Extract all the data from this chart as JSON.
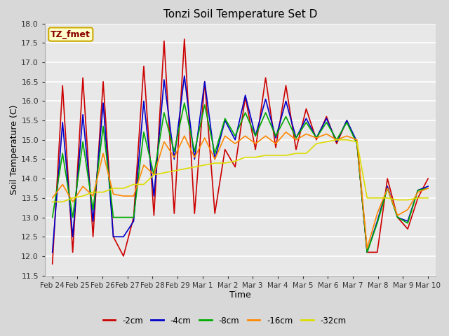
{
  "title": "Tonzi Soil Temperature Set D",
  "xlabel": "Time",
  "ylabel": "Soil Temperature (C)",
  "ylim": [
    11.5,
    18.0
  ],
  "yticks": [
    11.5,
    12.0,
    12.5,
    13.0,
    13.5,
    14.0,
    14.5,
    15.0,
    15.5,
    16.0,
    16.5,
    17.0,
    17.5,
    18.0
  ],
  "legend_label": "TZ_fmet",
  "series_labels": [
    "-2cm",
    "-4cm",
    "-8cm",
    "-16cm",
    "-32cm"
  ],
  "series_colors": [
    "#cc0000",
    "#0000cc",
    "#00aa00",
    "#ff8800",
    "#dddd00"
  ],
  "bg_color": "#d8d8d8",
  "plot_bg_color": "#e8e8e8",
  "x_tick_labels": [
    "Feb 24",
    "Feb 25",
    "Feb 26",
    "Feb 27",
    "Feb 28",
    "Feb 29",
    "Mar 1",
    "Mar 2",
    "Mar 3",
    "Mar 4",
    "Mar 5",
    "Mar 6",
    "Mar 7",
    "Mar 8",
    "Mar 9",
    "Mar 10"
  ],
  "series_2cm": [
    11.8,
    16.4,
    12.1,
    16.6,
    12.5,
    16.5,
    12.5,
    12.0,
    13.0,
    16.9,
    13.05,
    17.55,
    13.1,
    17.6,
    13.1,
    16.5,
    13.1,
    14.75,
    14.3,
    16.1,
    14.75,
    16.6,
    14.8,
    16.4,
    14.75,
    15.8,
    15.0,
    15.6,
    14.9,
    15.5,
    14.9,
    12.1,
    12.1,
    14.0,
    13.0,
    12.7,
    13.5,
    14.0
  ],
  "series_4cm": [
    12.1,
    15.45,
    12.5,
    15.65,
    12.9,
    15.95,
    12.5,
    12.5,
    12.9,
    16.0,
    13.55,
    16.55,
    14.5,
    16.65,
    14.5,
    16.5,
    14.5,
    15.5,
    15.0,
    16.15,
    15.1,
    16.05,
    15.05,
    16.0,
    15.05,
    15.55,
    15.05,
    15.55,
    14.95,
    15.5,
    14.95,
    12.1,
    12.9,
    13.8,
    13.0,
    12.9,
    13.7,
    13.8
  ],
  "series_8cm": [
    13.0,
    14.65,
    13.0,
    14.95,
    13.2,
    15.35,
    13.0,
    13.0,
    13.0,
    15.2,
    14.1,
    15.7,
    14.7,
    15.95,
    14.7,
    15.9,
    14.65,
    15.55,
    15.1,
    15.7,
    15.1,
    15.7,
    15.1,
    15.6,
    15.05,
    15.45,
    15.05,
    15.45,
    15.0,
    15.45,
    14.9,
    12.1,
    12.85,
    13.75,
    13.0,
    12.85,
    13.7,
    13.75
  ],
  "series_16cm": [
    13.5,
    13.85,
    13.4,
    13.8,
    13.55,
    14.65,
    13.6,
    13.55,
    13.55,
    14.35,
    14.1,
    14.95,
    14.55,
    15.1,
    14.55,
    15.05,
    14.5,
    15.1,
    14.9,
    15.1,
    14.9,
    15.1,
    14.9,
    15.2,
    15.0,
    15.15,
    15.05,
    15.15,
    15.0,
    15.1,
    15.0,
    12.2,
    13.1,
    13.75,
    13.05,
    13.2,
    13.65,
    13.75
  ],
  "series_32cm": [
    13.4,
    13.4,
    13.5,
    13.55,
    13.65,
    13.65,
    13.75,
    13.75,
    13.85,
    13.85,
    14.1,
    14.15,
    14.2,
    14.25,
    14.3,
    14.35,
    14.4,
    14.4,
    14.45,
    14.55,
    14.55,
    14.6,
    14.6,
    14.6,
    14.65,
    14.65,
    14.9,
    14.95,
    15.0,
    15.0,
    14.95,
    13.5,
    13.5,
    13.5,
    13.45,
    13.45,
    13.5,
    13.5
  ]
}
